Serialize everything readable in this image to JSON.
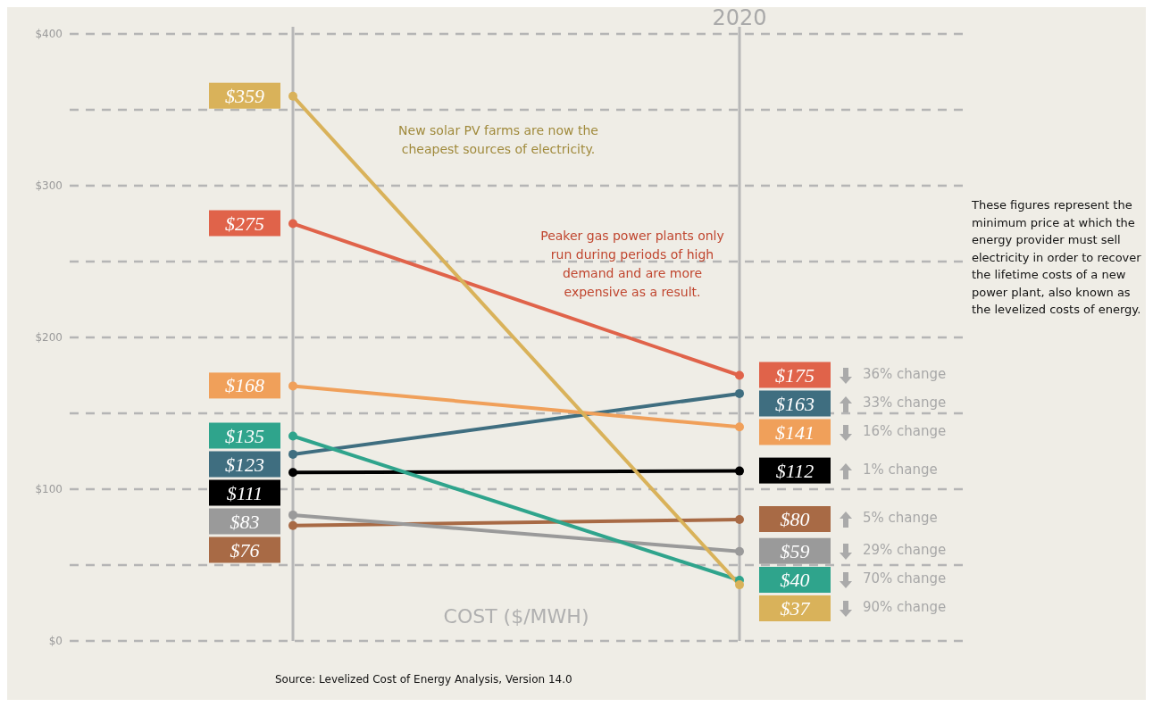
{
  "chart_data": {
    "type": "line",
    "ylabel": "COST ($/MWH)",
    "categories": [
      null,
      "2020"
    ],
    "ylim": [
      0,
      400
    ],
    "yticks": [
      {
        "value": 0,
        "label": "$0"
      },
      {
        "value": 50,
        "label": null
      },
      {
        "value": 100,
        "label": "$100"
      },
      {
        "value": 150,
        "label": null
      },
      {
        "value": 200,
        "label": "$200"
      },
      {
        "value": 250,
        "label": null
      },
      {
        "value": 300,
        "label": "$300"
      },
      {
        "value": 350,
        "label": null
      },
      {
        "value": 400,
        "label": "$400"
      }
    ],
    "grid": "y",
    "marker": "circle",
    "line_style": "solid",
    "series": [
      {
        "color": "#d9b25a",
        "values": [
          359,
          37
        ],
        "value_labels": [
          "$359",
          "$37"
        ]
      },
      {
        "color": "#e0634a",
        "values": [
          275,
          175
        ],
        "value_labels": [
          "$275",
          "$175"
        ]
      },
      {
        "color": "#f0a05a",
        "values": [
          168,
          141
        ],
        "value_labels": [
          "$168",
          "$141"
        ]
      },
      {
        "color": "#2fa48c",
        "values": [
          135,
          40
        ],
        "value_labels": [
          "$135",
          "$40"
        ]
      },
      {
        "color": "#3f6e80",
        "values": [
          123,
          163
        ],
        "value_labels": [
          "$123",
          "$163"
        ]
      },
      {
        "color": "#000000",
        "values": [
          111,
          112
        ],
        "value_labels": [
          "$111",
          "$112"
        ]
      },
      {
        "color": "#9a9a9a",
        "values": [
          83,
          59
        ],
        "value_labels": [
          "$83",
          "$59"
        ]
      },
      {
        "color": "#a86a45",
        "values": [
          76,
          80
        ],
        "value_labels": [
          "$76",
          "$80"
        ]
      }
    ],
    "annotations": [
      "New solar PV farms are now the cheapest sources of electricity.",
      "Peaker gas power plants only run during periods of high demand and are more expensive as a result.",
      "These figures represent the minimum price at which the energy provider must sell electricity in order to recover the lifetime costs of a new power plant, also known as the levelized costs of energy.",
      "Source: Levelized Cost of Energy Analysis, Version 14.0",
      "36% change",
      "33% change",
      "16% change",
      "1% change",
      "5% change",
      "29% change",
      "70% change",
      "90% change"
    ]
  }
}
